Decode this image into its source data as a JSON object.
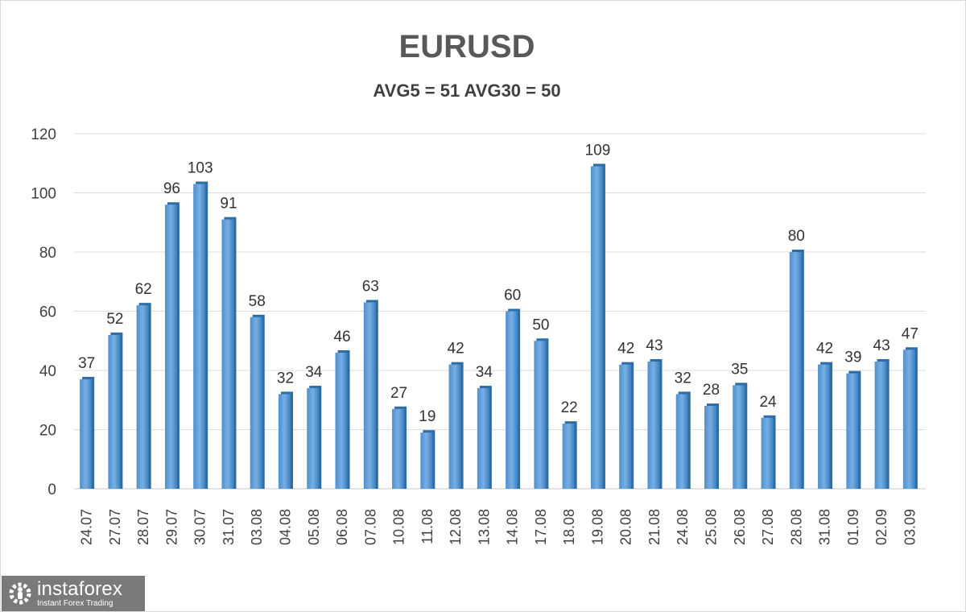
{
  "chart_data": {
    "type": "bar",
    "title": "EURUSD",
    "subtitle": "AVG5 = 51 AVG30 = 50",
    "categories": [
      "24.07",
      "27.07",
      "28.07",
      "29.07",
      "30.07",
      "31.07",
      "03.08",
      "04.08",
      "05.08",
      "06.08",
      "07.08",
      "10.08",
      "11.08",
      "12.08",
      "13.08",
      "14.08",
      "17.08",
      "18.08",
      "19.08",
      "20.08",
      "21.08",
      "24.08",
      "25.08",
      "26.08",
      "27.08",
      "28.08",
      "31.08",
      "01.09",
      "02.09",
      "03.09"
    ],
    "values": [
      37,
      52,
      62,
      96,
      103,
      91,
      58,
      32,
      34,
      46,
      63,
      27,
      19,
      42,
      34,
      60,
      50,
      22,
      109,
      42,
      43,
      32,
      28,
      35,
      24,
      80,
      42,
      39,
      43,
      47
    ],
    "ylim": [
      0,
      120
    ],
    "yticks": [
      0,
      20,
      40,
      60,
      80,
      100,
      120
    ],
    "grid": true,
    "bar_color": "#5b9bd5",
    "xlabel": "",
    "ylabel": ""
  },
  "watermark": {
    "name": "instaforex",
    "tagline": "Instant Forex Trading"
  }
}
